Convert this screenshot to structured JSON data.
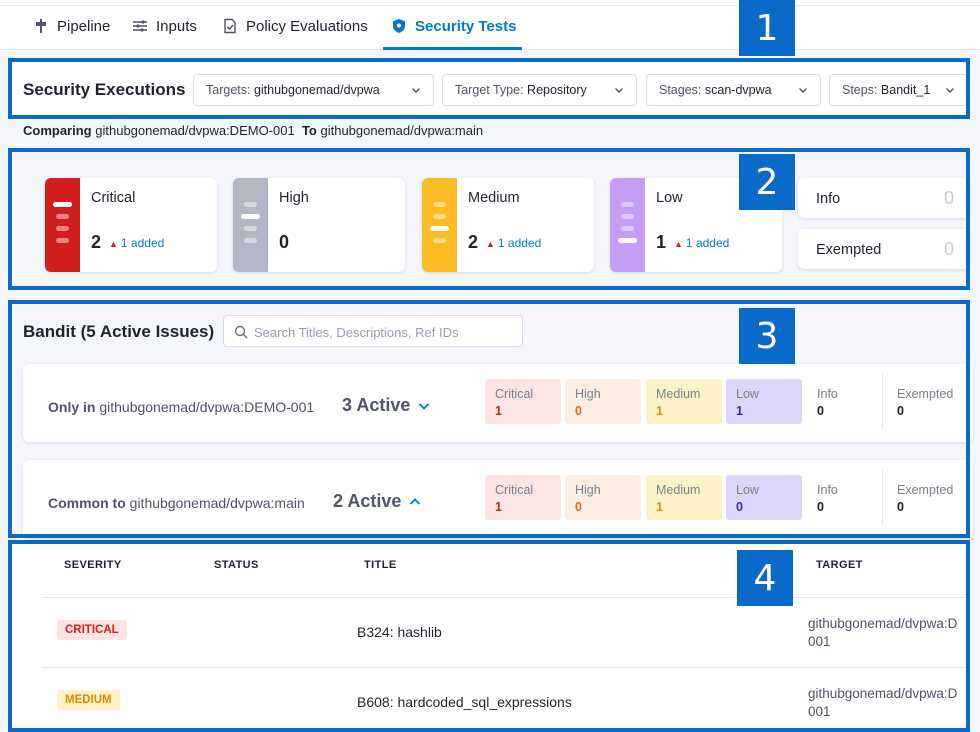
{
  "nav": {
    "tabs": [
      {
        "label": "Pipeline",
        "icon": "pipeline-icon"
      },
      {
        "label": "Inputs",
        "icon": "inputs-icon"
      },
      {
        "label": "Policy Evaluations",
        "icon": "policy-check-icon"
      },
      {
        "label": "Security Tests",
        "icon": "shield-icon",
        "active": true
      }
    ]
  },
  "annotations": [
    "1",
    "2",
    "3",
    "4"
  ],
  "executions": {
    "title": "Security Executions",
    "filters": [
      {
        "label": "Targets:",
        "value": "githubgonemad/dvpwa"
      },
      {
        "label": "Target Type:",
        "value": "Repository"
      },
      {
        "label": "Stages:",
        "value": "scan-dvpwa"
      },
      {
        "label": "Steps:",
        "value": "Bandit_1"
      }
    ],
    "comparing": {
      "prefix": "Comparing",
      "from": "githubgonemad/dvpwa:DEMO-001",
      "to_label": "To",
      "to": "githubgonemad/dvpwa:main"
    }
  },
  "severity_summary": {
    "cards": [
      {
        "name": "Critical",
        "count": "2",
        "added": "1 added",
        "color": "#d11f1f"
      },
      {
        "name": "High",
        "count": "0",
        "added": "",
        "color": "#b4b6c6"
      },
      {
        "name": "Medium",
        "count": "2",
        "added": "1 added",
        "color": "#fbbd21"
      },
      {
        "name": "Low",
        "count": "1",
        "added": "1 added",
        "color": "#c49df7"
      }
    ],
    "info": {
      "name": "Info",
      "count": "0"
    },
    "exempted": {
      "name": "Exempted",
      "count": "0"
    }
  },
  "issues": {
    "title": "Bandit (5 Active Issues)",
    "search_placeholder": "Search Titles, Descriptions, Ref IDs",
    "groups": [
      {
        "prefix": "Only in",
        "target": "githubgonemad/dvpwa:DEMO-001",
        "active": "3 Active",
        "expanded": false,
        "counts": {
          "critical": "1",
          "high": "0",
          "medium": "1",
          "low": "1",
          "info": "0",
          "exempted": "0"
        }
      },
      {
        "prefix": "Common to",
        "target": "githubgonemad/dvpwa:main",
        "active": "2 Active",
        "expanded": true,
        "counts": {
          "critical": "1",
          "high": "0",
          "medium": "1",
          "low": "0",
          "info": "0",
          "exempted": "0"
        }
      }
    ],
    "labels": {
      "critical": "Critical",
      "high": "High",
      "medium": "Medium",
      "low": "Low",
      "info": "Info",
      "exempted": "Exempted"
    }
  },
  "table": {
    "headers": [
      "SEVERITY",
      "STATUS",
      "TITLE",
      "TARGET"
    ],
    "rows": [
      {
        "severity": "CRITICAL",
        "title": "B324: hashlib",
        "target_line1": "githubgonemad/dvpwa:D",
        "target_line2": "001"
      },
      {
        "severity": "MEDIUM",
        "title": "B608: hardcoded_sql_expressions",
        "target_line1": "githubgonemad/dvpwa:D",
        "target_line2": "001"
      }
    ]
  },
  "colors": {
    "accent": "#0278d5",
    "annotation": "#0a6ac9",
    "critical_bg": "#fbe4e4",
    "critical_fg": "#cf2318",
    "high_bg": "#fdeee4",
    "high_fg": "#e46b1a",
    "medium_bg": "#fdf1c6",
    "medium_fg": "#e08a00",
    "low_bg": "#ddd6fb",
    "low_fg": "#3b2aa8"
  }
}
